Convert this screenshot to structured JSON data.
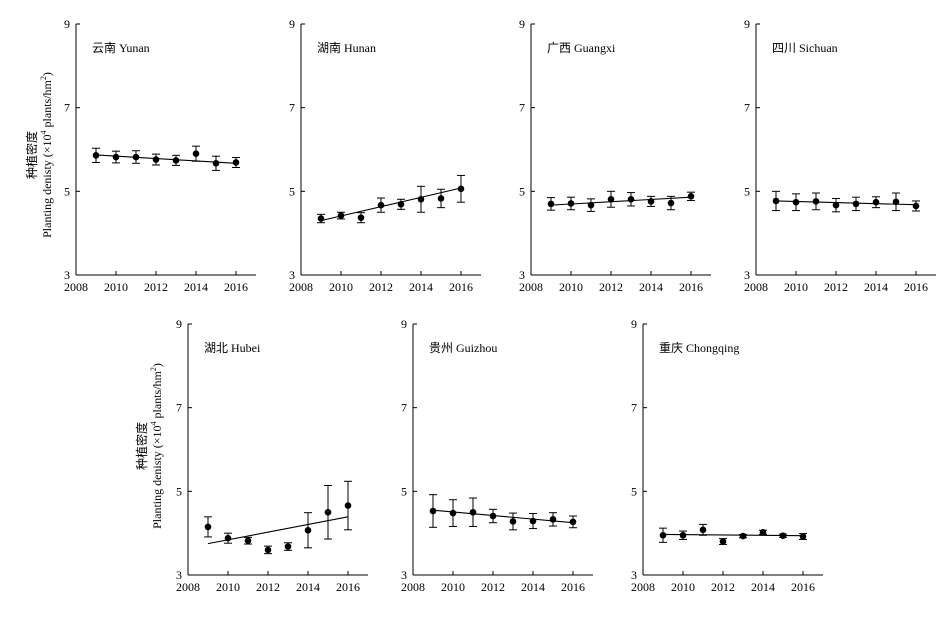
{
  "figure": {
    "ylabel": {
      "zh": "种植密度",
      "en": "Planting denisty (×10",
      "exp": "4",
      "unit": " plants/hm",
      "unit_exp": "2",
      "close": ")"
    }
  },
  "chart_data": [
    {
      "type": "scatter",
      "title": "云南 Yunan",
      "xlim": [
        2008,
        2017
      ],
      "ylim": [
        3,
        9
      ],
      "xticks": [
        "2008",
        "2010",
        "2012",
        "2014",
        "2016"
      ],
      "yticks": [
        "3",
        "5",
        "7",
        "9"
      ],
      "x": [
        2009,
        2010,
        2011,
        2012,
        2013,
        2014,
        2015,
        2016
      ],
      "y": [
        5.86,
        5.82,
        5.82,
        5.76,
        5.74,
        5.9,
        5.67,
        5.69
      ],
      "error": [
        0.17,
        0.14,
        0.15,
        0.13,
        0.12,
        0.18,
        0.17,
        0.12
      ],
      "trend": [
        5.87,
        5.67
      ]
    },
    {
      "type": "scatter",
      "title": "湖南 Hunan",
      "xlim": [
        2008,
        2017
      ],
      "ylim": [
        3,
        9
      ],
      "xticks": [
        "2008",
        "2010",
        "2012",
        "2014",
        "2016"
      ],
      "yticks": [
        "3",
        "5",
        "7",
        "9"
      ],
      "x": [
        2009,
        2010,
        2011,
        2012,
        2013,
        2014,
        2015,
        2016
      ],
      "y": [
        4.35,
        4.42,
        4.37,
        4.67,
        4.69,
        4.81,
        4.83,
        5.06
      ],
      "error": [
        0.1,
        0.08,
        0.12,
        0.17,
        0.12,
        0.31,
        0.22,
        0.32
      ],
      "trend": [
        4.3,
        5.08
      ]
    },
    {
      "type": "scatter",
      "title": "广西 Guangxi",
      "xlim": [
        2008,
        2017
      ],
      "ylim": [
        3,
        9
      ],
      "xticks": [
        "2008",
        "2010",
        "2012",
        "2014",
        "2016"
      ],
      "yticks": [
        "3",
        "5",
        "7",
        "9"
      ],
      "x": [
        2009,
        2010,
        2011,
        2012,
        2013,
        2014,
        2015,
        2016
      ],
      "y": [
        4.7,
        4.71,
        4.67,
        4.81,
        4.81,
        4.76,
        4.72,
        4.88
      ],
      "error": [
        0.15,
        0.15,
        0.15,
        0.19,
        0.16,
        0.12,
        0.16,
        0.1
      ],
      "trend": [
        4.67,
        4.86
      ]
    },
    {
      "type": "scatter",
      "title": "四川 Sichuan",
      "xlim": [
        2008,
        2017
      ],
      "ylim": [
        3,
        9
      ],
      "xticks": [
        "2008",
        "2010",
        "2012",
        "2014",
        "2016"
      ],
      "yticks": [
        "3",
        "5",
        "7",
        "9"
      ],
      "x": [
        2009,
        2010,
        2011,
        2012,
        2013,
        2014,
        2015,
        2016
      ],
      "y": [
        4.77,
        4.74,
        4.76,
        4.67,
        4.7,
        4.74,
        4.75,
        4.65
      ],
      "error": [
        0.23,
        0.2,
        0.2,
        0.16,
        0.16,
        0.13,
        0.21,
        0.12
      ],
      "trend": [
        4.77,
        4.68
      ]
    },
    {
      "type": "scatter",
      "title": "湖北 Hubei",
      "xlim": [
        2008,
        2017
      ],
      "ylim": [
        3,
        9
      ],
      "xticks": [
        "2008",
        "2010",
        "2012",
        "2014",
        "2016"
      ],
      "yticks": [
        "3",
        "5",
        "7",
        "9"
      ],
      "x": [
        2009,
        2010,
        2011,
        2012,
        2013,
        2014,
        2015,
        2016
      ],
      "y": [
        4.15,
        3.88,
        3.82,
        3.6,
        3.68,
        4.07,
        4.5,
        4.66
      ],
      "error": [
        0.24,
        0.12,
        0.08,
        0.09,
        0.09,
        0.42,
        0.64,
        0.58
      ],
      "trend": [
        3.75,
        4.39
      ]
    },
    {
      "type": "scatter",
      "title": "贵州 Guizhou",
      "xlim": [
        2008,
        2017
      ],
      "ylim": [
        3,
        9
      ],
      "xticks": [
        "2008",
        "2010",
        "2012",
        "2014",
        "2016"
      ],
      "yticks": [
        "3",
        "5",
        "7",
        "9"
      ],
      "x": [
        2009,
        2010,
        2011,
        2012,
        2013,
        2014,
        2015,
        2016
      ],
      "y": [
        4.53,
        4.48,
        4.5,
        4.41,
        4.28,
        4.29,
        4.33,
        4.27
      ],
      "error": [
        0.39,
        0.32,
        0.34,
        0.16,
        0.2,
        0.18,
        0.16,
        0.14
      ],
      "trend": [
        4.55,
        4.25
      ]
    },
    {
      "type": "scatter",
      "title": "重庆 Chongqing",
      "xlim": [
        2008,
        2017
      ],
      "ylim": [
        3,
        9
      ],
      "xticks": [
        "2008",
        "2010",
        "2012",
        "2014",
        "2016"
      ],
      "yticks": [
        "3",
        "5",
        "7",
        "9"
      ],
      "x": [
        2009,
        2010,
        2011,
        2012,
        2013,
        2014,
        2015,
        2016
      ],
      "y": [
        3.95,
        3.95,
        4.08,
        3.8,
        3.93,
        4.02,
        3.94,
        3.92
      ],
      "error": [
        0.17,
        0.1,
        0.13,
        0.07,
        0.04,
        0.05,
        0.04,
        0.07
      ],
      "trend": [
        3.97,
        3.94
      ]
    }
  ]
}
